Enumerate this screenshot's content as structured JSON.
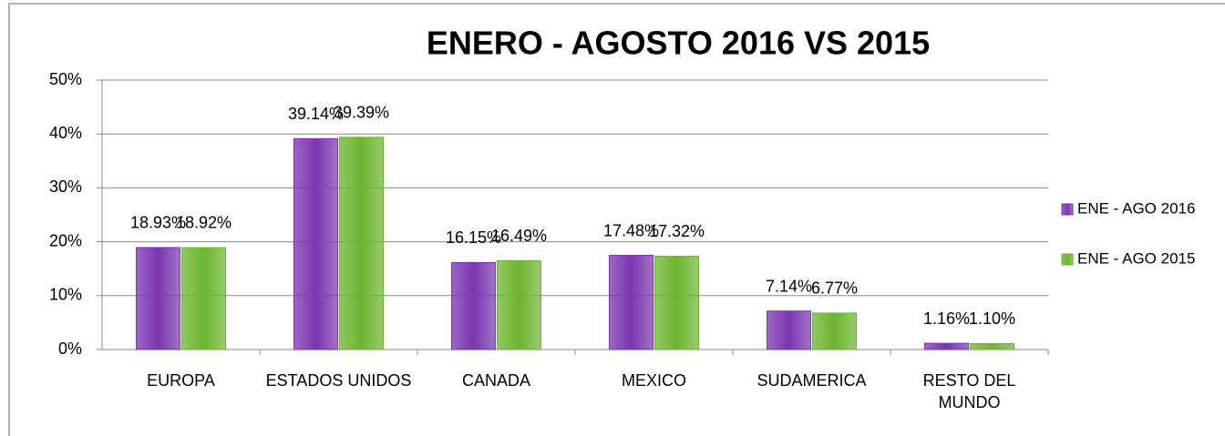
{
  "chart_data": {
    "type": "bar",
    "title": "ENERO - AGOSTO  2016 VS 2015",
    "categories": [
      "EUROPA",
      "ESTADOS UNIDOS",
      "CANADA",
      "MEXICO",
      "SUDAMERICA",
      "RESTO DEL MUNDO"
    ],
    "series": [
      {
        "name": "ENE - AGO 2016",
        "color": "#7b35b0",
        "values": [
          18.93,
          39.14,
          16.15,
          17.48,
          7.14,
          1.16
        ],
        "value_labels": [
          "18.93%",
          "39.14%",
          "16.15%",
          "17.48%",
          "7.14%",
          "1.16%"
        ]
      },
      {
        "name": "ENE - AGO  2015",
        "color": "#6cb52e",
        "values": [
          18.92,
          39.39,
          16.49,
          17.32,
          6.77,
          1.1
        ],
        "value_labels": [
          "18.92%",
          "39.39%",
          "16.49%",
          "17.32%",
          "6.77%",
          "1.10%"
        ]
      }
    ],
    "ylim": [
      0,
      50
    ],
    "yticks": [
      {
        "value": 0,
        "label": "0%"
      },
      {
        "value": 10,
        "label": "10%"
      },
      {
        "value": 20,
        "label": "20%"
      },
      {
        "value": 30,
        "label": "30%"
      },
      {
        "value": 40,
        "label": "40%"
      },
      {
        "value": 50,
        "label": "50%"
      }
    ],
    "grid": true,
    "legend": "right"
  }
}
